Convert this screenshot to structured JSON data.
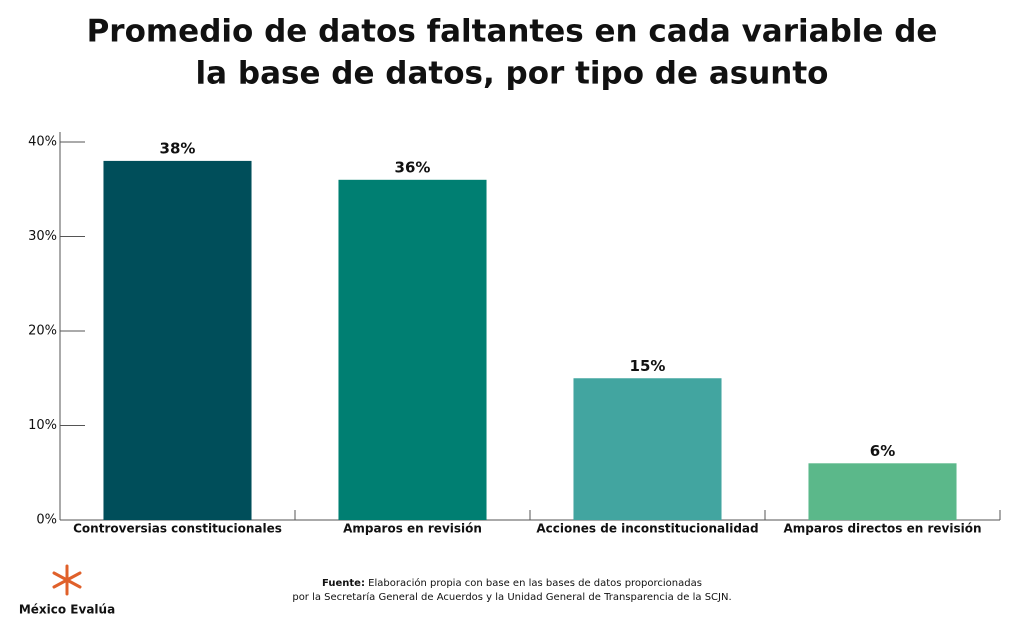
{
  "chart_data": {
    "type": "bar",
    "title": [
      "Promedio de datos faltantes en cada variable de",
      "la base de datos, por tipo de asunto"
    ],
    "categories": [
      "Controversias constitucionales",
      "Amparos en revisión",
      "Acciones de inconstitucionalidad",
      "Amparos directos en revisión"
    ],
    "values": [
      38,
      36,
      15,
      6
    ],
    "value_labels": [
      "38%",
      "36%",
      "15%",
      "6%"
    ],
    "colors": [
      "#004e5a",
      "#007f72",
      "#42a5a0",
      "#5bb88a"
    ],
    "ylim": [
      0,
      40
    ],
    "yticks": [
      {
        "value": 0,
        "label": "0%"
      },
      {
        "value": 10,
        "label": "10%"
      },
      {
        "value": 20,
        "label": "20%"
      },
      {
        "value": 30,
        "label": "30%"
      },
      {
        "value": 40,
        "label": "40%"
      }
    ]
  },
  "footer": {
    "source_label": "Fuente:",
    "source_lines": [
      "Elaboración propia con base en las bases de datos proporcionadas",
      "por la Secretaría General de Acuerdos y la Unidad General de Transparencia de la SCJN."
    ],
    "logo": "México Evalúa"
  }
}
